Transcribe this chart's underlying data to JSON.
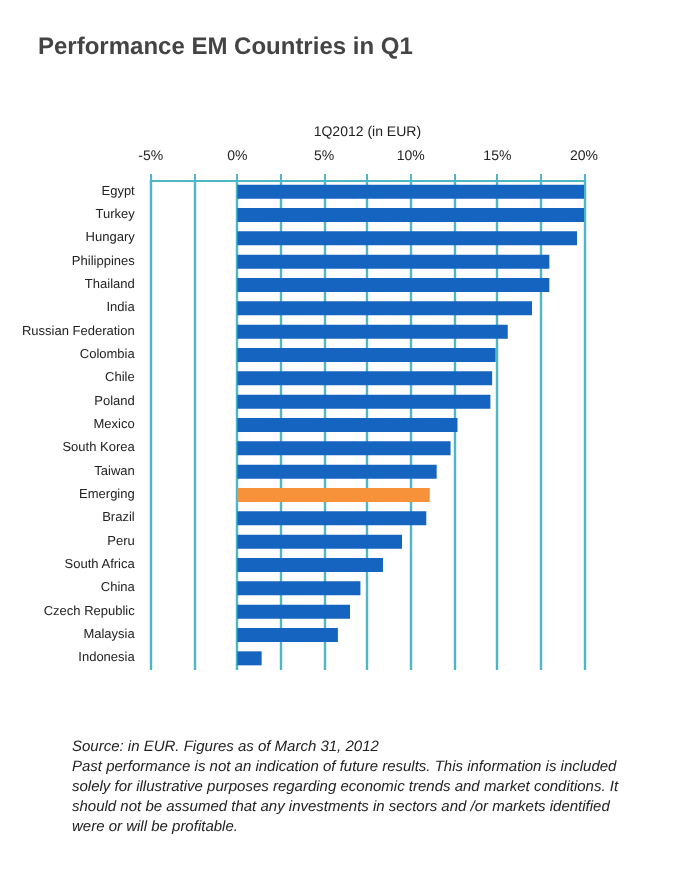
{
  "chart_data": {
    "type": "bar",
    "orientation": "horizontal",
    "title": "Performance EM Countries in Q1",
    "xlabel": "1Q2012 (in EUR)",
    "categories": [
      "Egypt",
      "Turkey",
      "Hungary",
      "Philippines",
      "Thailand",
      "India",
      "Russian Federation",
      "Colombia",
      "Chile",
      "Poland",
      "Mexico",
      "South Korea",
      "Taiwan",
      "Emerging",
      "Brazil",
      "Peru",
      "South Africa",
      "China",
      "Czech Republic",
      "Malaysia",
      "Indonesia"
    ],
    "values": [
      20.0,
      20.0,
      19.6,
      18.0,
      18.0,
      17.0,
      15.6,
      14.9,
      14.7,
      14.6,
      12.7,
      12.3,
      11.5,
      11.1,
      10.9,
      9.5,
      8.4,
      7.1,
      6.5,
      5.8,
      1.4
    ],
    "colors": [
      "#1565c0",
      "#1565c0",
      "#1565c0",
      "#1565c0",
      "#1565c0",
      "#1565c0",
      "#1565c0",
      "#1565c0",
      "#1565c0",
      "#1565c0",
      "#1565c0",
      "#1565c0",
      "#1565c0",
      "#f7923a",
      "#1565c0",
      "#1565c0",
      "#1565c0",
      "#1565c0",
      "#1565c0",
      "#1565c0",
      "#1565c0"
    ],
    "xlim": [
      -5,
      20
    ],
    "xticks": [
      {
        "value": -5,
        "label": "-5%"
      },
      {
        "value": -2.5,
        "label": null
      },
      {
        "value": 0,
        "label": "0%"
      },
      {
        "value": 2.5,
        "label": null
      },
      {
        "value": 5,
        "label": "5%"
      },
      {
        "value": 7.5,
        "label": null
      },
      {
        "value": 10,
        "label": "10%"
      },
      {
        "value": 12.5,
        "label": null
      },
      {
        "value": 15,
        "label": "15%"
      },
      {
        "value": 17.5,
        "label": null
      },
      {
        "value": 20,
        "label": "20%"
      }
    ],
    "grid": "x",
    "annotations": [
      "Source: in EUR. Figures as of March 31, 2012",
      "Past performance is not an indication of future results. This information is included solely for illustrative purposes regarding economic trends and market conditions. It should not be assumed that any investments in sectors and /or markets identified were or will be profitable."
    ]
  }
}
